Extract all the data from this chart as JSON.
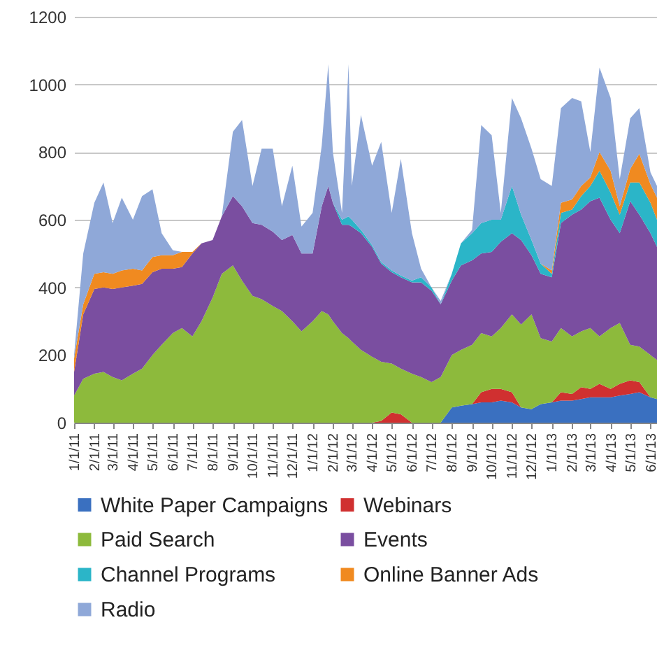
{
  "chart_data": {
    "type": "area",
    "stacked": true,
    "grid": "y",
    "legend": "bottom",
    "x": [
      "2011-01-01",
      "2011-01-15",
      "2011-02-01",
      "2011-02-15",
      "2011-03-01",
      "2011-03-15",
      "2011-04-01",
      "2011-04-15",
      "2011-05-01",
      "2011-05-15",
      "2011-06-01",
      "2011-06-15",
      "2011-07-01",
      "2011-07-15",
      "2011-08-01",
      "2011-08-15",
      "2011-09-01",
      "2011-09-15",
      "2011-10-01",
      "2011-10-15",
      "2011-11-01",
      "2011-11-15",
      "2011-12-01",
      "2011-12-15",
      "2012-01-01",
      "2012-01-15",
      "2012-01-25",
      "2012-02-01",
      "2012-02-15",
      "2012-02-25",
      "2012-03-01",
      "2012-03-15",
      "2012-04-01",
      "2012-04-15",
      "2012-05-01",
      "2012-05-15",
      "2012-06-01",
      "2012-06-15",
      "2012-07-01",
      "2012-07-15",
      "2012-08-01",
      "2012-08-15",
      "2012-09-01",
      "2012-09-15",
      "2012-10-01",
      "2012-10-15",
      "2012-11-01",
      "2012-11-15",
      "2012-12-01",
      "2012-12-15",
      "2013-01-01",
      "2013-01-15",
      "2013-02-01",
      "2013-02-15",
      "2013-03-01",
      "2013-03-15",
      "2013-04-01",
      "2013-04-15",
      "2013-05-01",
      "2013-05-15",
      "2013-06-01",
      "2013-06-11"
    ],
    "xlim": [
      "2011-01-01",
      "2013-06-11"
    ],
    "xticks": [
      {
        "value": "2011-01-01",
        "label": "1/1/11"
      },
      {
        "value": "2011-02-01",
        "label": "2/1/11"
      },
      {
        "value": "2011-03-01",
        "label": "3/1/11"
      },
      {
        "value": "2011-04-01",
        "label": "4/1/11"
      },
      {
        "value": "2011-05-01",
        "label": "5/1/11"
      },
      {
        "value": "2011-06-01",
        "label": "6/1/11"
      },
      {
        "value": "2011-07-01",
        "label": "7/1/11"
      },
      {
        "value": "2011-08-01",
        "label": "8/1/11"
      },
      {
        "value": "2011-09-01",
        "label": "9/1/11"
      },
      {
        "value": "2011-10-01",
        "label": "10/1/11"
      },
      {
        "value": "2011-11-01",
        "label": "11/1/11"
      },
      {
        "value": "2011-12-01",
        "label": "12/1/11"
      },
      {
        "value": "2012-01-01",
        "label": "1/1/12"
      },
      {
        "value": "2012-02-01",
        "label": "2/1/12"
      },
      {
        "value": "2012-03-01",
        "label": "3/1/12"
      },
      {
        "value": "2012-04-01",
        "label": "4/1/12"
      },
      {
        "value": "2012-05-01",
        "label": "5/1/12"
      },
      {
        "value": "2012-06-01",
        "label": "6/1/12"
      },
      {
        "value": "2012-07-01",
        "label": "7/1/12"
      },
      {
        "value": "2012-08-01",
        "label": "8/1/12"
      },
      {
        "value": "2012-09-01",
        "label": "9/1/12"
      },
      {
        "value": "2012-10-01",
        "label": "10/1/12"
      },
      {
        "value": "2012-11-01",
        "label": "11/1/12"
      },
      {
        "value": "2012-12-01",
        "label": "12/1/12"
      },
      {
        "value": "2013-01-01",
        "label": "1/1/13"
      },
      {
        "value": "2013-02-01",
        "label": "2/1/13"
      },
      {
        "value": "2013-03-01",
        "label": "3/1/13"
      },
      {
        "value": "2013-04-01",
        "label": "4/1/13"
      },
      {
        "value": "2013-05-01",
        "label": "5/1/13"
      },
      {
        "value": "2013-06-01",
        "label": "6/1/13"
      }
    ],
    "ylim": [
      0,
      1200
    ],
    "yticks": [
      0,
      200,
      400,
      600,
      800,
      1000,
      1200
    ],
    "series": [
      {
        "name": "White Paper Campaigns",
        "color": "#3a70c0",
        "values": [
          0,
          0,
          0,
          0,
          0,
          0,
          0,
          0,
          0,
          0,
          0,
          0,
          0,
          0,
          0,
          0,
          0,
          0,
          0,
          0,
          0,
          0,
          0,
          0,
          0,
          0,
          0,
          0,
          0,
          0,
          0,
          0,
          0,
          0,
          0,
          0,
          0,
          0,
          0,
          0,
          45,
          50,
          55,
          60,
          60,
          65,
          60,
          45,
          40,
          55,
          60,
          65,
          65,
          70,
          75,
          75,
          75,
          80,
          85,
          90,
          75,
          70
        ]
      },
      {
        "name": "Webinars",
        "color": "#d03030",
        "values": [
          0,
          0,
          0,
          0,
          0,
          0,
          0,
          0,
          0,
          0,
          0,
          0,
          0,
          0,
          0,
          0,
          0,
          0,
          0,
          0,
          0,
          0,
          0,
          0,
          0,
          0,
          0,
          0,
          0,
          0,
          0,
          0,
          0,
          5,
          30,
          25,
          0,
          0,
          0,
          0,
          0,
          0,
          0,
          30,
          40,
          35,
          30,
          0,
          0,
          0,
          0,
          25,
          20,
          35,
          25,
          40,
          25,
          35,
          40,
          30,
          0,
          0
        ]
      },
      {
        "name": "Paid Search",
        "color": "#8dba3c",
        "values": [
          80,
          130,
          145,
          150,
          135,
          125,
          145,
          160,
          200,
          230,
          265,
          280,
          255,
          300,
          370,
          440,
          465,
          420,
          375,
          365,
          345,
          330,
          300,
          270,
          300,
          330,
          320,
          300,
          265,
          250,
          240,
          215,
          195,
          175,
          145,
          135,
          145,
          135,
          120,
          135,
          155,
          165,
          175,
          175,
          155,
          180,
          230,
          245,
          280,
          195,
          180,
          190,
          170,
          165,
          180,
          140,
          180,
          180,
          105,
          105,
          125,
          115
        ]
      },
      {
        "name": "Events",
        "color": "#7a4ea0",
        "values": [
          70,
          190,
          250,
          250,
          260,
          275,
          260,
          250,
          245,
          225,
          190,
          180,
          245,
          230,
          170,
          170,
          205,
          220,
          215,
          220,
          220,
          210,
          255,
          230,
          200,
          310,
          380,
          350,
          320,
          335,
          340,
          345,
          325,
          290,
          270,
          270,
          270,
          280,
          270,
          215,
          220,
          250,
          250,
          235,
          250,
          255,
          240,
          250,
          175,
          190,
          190,
          310,
          360,
          360,
          375,
          410,
          320,
          265,
          425,
          390,
          360,
          335
        ]
      },
      {
        "name": "Channel Programs",
        "color": "#2bb5c8",
        "values": [
          0,
          0,
          0,
          0,
          0,
          0,
          0,
          0,
          0,
          0,
          0,
          0,
          0,
          0,
          0,
          0,
          0,
          0,
          0,
          0,
          0,
          0,
          0,
          0,
          0,
          0,
          0,
          0,
          15,
          25,
          20,
          10,
          5,
          5,
          5,
          5,
          5,
          15,
          10,
          0,
          20,
          65,
          80,
          90,
          95,
          65,
          140,
          75,
          45,
          30,
          10,
          30,
          15,
          40,
          45,
          80,
          80,
          55,
          55,
          95,
          90,
          80
        ]
      },
      {
        "name": "Online Banner Ads",
        "color": "#f08a20",
        "values": [
          40,
          30,
          45,
          45,
          45,
          50,
          50,
          40,
          45,
          40,
          40,
          45,
          5,
          0,
          0,
          0,
          0,
          0,
          0,
          0,
          0,
          0,
          0,
          0,
          0,
          0,
          0,
          0,
          0,
          0,
          0,
          0,
          0,
          0,
          0,
          0,
          0,
          0,
          0,
          0,
          0,
          0,
          0,
          0,
          0,
          0,
          0,
          0,
          0,
          0,
          10,
          30,
          30,
          30,
          25,
          55,
          65,
          25,
          40,
          85,
          55,
          65
        ]
      },
      {
        "name": "Radio",
        "color": "#8fa8d8",
        "values": [
          10,
          150,
          210,
          265,
          150,
          215,
          145,
          220,
          200,
          65,
          15,
          0,
          0,
          0,
          0,
          0,
          190,
          255,
          110,
          225,
          245,
          100,
          205,
          80,
          120,
          180,
          360,
          150,
          20,
          450,
          100,
          340,
          235,
          355,
          170,
          345,
          140,
          25,
          0,
          10,
          0,
          0,
          10,
          290,
          250,
          20,
          260,
          285,
          270,
          250,
          250,
          280,
          300,
          250,
          75,
          250,
          215,
          80,
          150,
          135,
          35,
          35
        ]
      }
    ]
  }
}
